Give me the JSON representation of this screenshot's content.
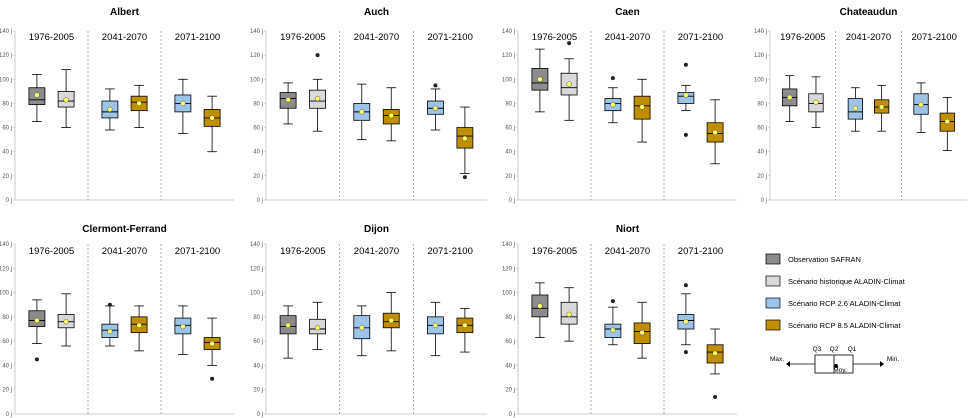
{
  "chart_data": {
    "type": "boxplot",
    "y_unit_suffix": " j",
    "ylim": [
      0,
      140
    ],
    "yticks": [
      0,
      20,
      40,
      60,
      80,
      100,
      120,
      140
    ],
    "periods": [
      "1976-2005",
      "2041-2070",
      "2071-2100"
    ],
    "series_colors": {
      "obs": "#8c8c8c",
      "hist": "#d9d9d9",
      "rcp26": "#9dc3e6",
      "rcp85": "#bf8f00"
    },
    "panels": [
      {
        "title": "Albert",
        "boxes": [
          {
            "series": "obs",
            "min": 65,
            "q1": 79,
            "median": 83,
            "q3": 93,
            "max": 104,
            "mean": 87
          },
          {
            "series": "hist",
            "min": 60,
            "q1": 77,
            "median": 82,
            "q3": 90,
            "max": 108,
            "mean": 83
          },
          {
            "series": "rcp26",
            "min": 58,
            "q1": 68,
            "median": 73,
            "q3": 82,
            "max": 92,
            "mean": 75
          },
          {
            "series": "rcp85",
            "min": 60,
            "q1": 74,
            "median": 81,
            "q3": 86,
            "max": 95,
            "mean": 80
          },
          {
            "series": "rcp26",
            "min": 55,
            "q1": 73,
            "median": 80,
            "q3": 87,
            "max": 100,
            "mean": 80
          },
          {
            "series": "rcp85",
            "min": 40,
            "q1": 61,
            "median": 68,
            "q3": 75,
            "max": 86,
            "mean": 68
          }
        ]
      },
      {
        "title": "Auch",
        "boxes": [
          {
            "series": "obs",
            "min": 63,
            "q1": 76,
            "median": 84,
            "q3": 89,
            "max": 97,
            "mean": 83
          },
          {
            "series": "hist",
            "min": 57,
            "q1": 76,
            "median": 82,
            "q3": 91,
            "max": 100,
            "mean": 84,
            "outliers": [
              120
            ]
          },
          {
            "series": "rcp26",
            "min": 50,
            "q1": 66,
            "median": 73,
            "q3": 80,
            "max": 96,
            "mean": 73
          },
          {
            "series": "rcp85",
            "min": 49,
            "q1": 63,
            "median": 70,
            "q3": 75,
            "max": 93,
            "mean": 70
          },
          {
            "series": "rcp26",
            "min": 58,
            "q1": 71,
            "median": 76,
            "q3": 82,
            "max": 92,
            "mean": 76,
            "outliers": [
              95
            ]
          },
          {
            "series": "rcp85",
            "min": 22,
            "q1": 43,
            "median": 53,
            "q3": 60,
            "max": 77,
            "mean": 51,
            "outliers": [
              19
            ]
          }
        ]
      },
      {
        "title": "Caen",
        "boxes": [
          {
            "series": "obs",
            "min": 73,
            "q1": 91,
            "median": 97,
            "q3": 109,
            "max": 125,
            "mean": 100
          },
          {
            "series": "hist",
            "min": 66,
            "q1": 87,
            "median": 93,
            "q3": 105,
            "max": 117,
            "mean": 96,
            "outliers": [
              130
            ]
          },
          {
            "series": "rcp26",
            "min": 64,
            "q1": 74,
            "median": 80,
            "q3": 84,
            "max": 93,
            "mean": 79,
            "outliers": [
              101
            ]
          },
          {
            "series": "rcp85",
            "min": 48,
            "q1": 67,
            "median": 78,
            "q3": 86,
            "max": 100,
            "mean": 77
          },
          {
            "series": "rcp26",
            "min": 74,
            "q1": 80,
            "median": 86,
            "q3": 89,
            "max": 95,
            "mean": 87,
            "outliers": [
              112,
              54
            ]
          },
          {
            "series": "rcp85",
            "min": 30,
            "q1": 48,
            "median": 55,
            "q3": 64,
            "max": 83,
            "mean": 56
          }
        ]
      },
      {
        "title": "Chateaudun",
        "boxes": [
          {
            "series": "obs",
            "min": 65,
            "q1": 78,
            "median": 85,
            "q3": 92,
            "max": 103,
            "mean": 85
          },
          {
            "series": "hist",
            "min": 60,
            "q1": 73,
            "median": 80,
            "q3": 88,
            "max": 102,
            "mean": 81
          },
          {
            "series": "rcp26",
            "min": 57,
            "q1": 67,
            "median": 73,
            "q3": 84,
            "max": 93,
            "mean": 76
          },
          {
            "series": "rcp85",
            "min": 57,
            "q1": 72,
            "median": 77,
            "q3": 83,
            "max": 95,
            "mean": 77
          },
          {
            "series": "rcp26",
            "min": 56,
            "q1": 71,
            "median": 79,
            "q3": 88,
            "max": 97,
            "mean": 79
          },
          {
            "series": "rcp85",
            "min": 41,
            "q1": 57,
            "median": 65,
            "q3": 72,
            "max": 85,
            "mean": 65
          }
        ]
      },
      {
        "title": "Clermont-Ferrand",
        "boxes": [
          {
            "series": "obs",
            "min": 58,
            "q1": 72,
            "median": 77,
            "q3": 85,
            "max": 94,
            "mean": 77,
            "outliers": [
              45
            ]
          },
          {
            "series": "hist",
            "min": 56,
            "q1": 71,
            "median": 76,
            "q3": 82,
            "max": 99,
            "mean": 76
          },
          {
            "series": "rcp26",
            "min": 56,
            "q1": 63,
            "median": 69,
            "q3": 74,
            "max": 89,
            "mean": 68,
            "outliers": [
              90
            ]
          },
          {
            "series": "rcp85",
            "min": 52,
            "q1": 67,
            "median": 74,
            "q3": 80,
            "max": 89,
            "mean": 73
          },
          {
            "series": "rcp26",
            "min": 49,
            "q1": 66,
            "median": 73,
            "q3": 79,
            "max": 89,
            "mean": 72
          },
          {
            "series": "rcp85",
            "min": 40,
            "q1": 53,
            "median": 59,
            "q3": 63,
            "max": 79,
            "mean": 58,
            "outliers": [
              29
            ]
          }
        ]
      },
      {
        "title": "Dijon",
        "boxes": [
          {
            "series": "obs",
            "min": 46,
            "q1": 66,
            "median": 72,
            "q3": 81,
            "max": 89,
            "mean": 73
          },
          {
            "series": "hist",
            "min": 53,
            "q1": 66,
            "median": 70,
            "q3": 78,
            "max": 92,
            "mean": 71
          },
          {
            "series": "rcp26",
            "min": 48,
            "q1": 62,
            "median": 71,
            "q3": 81,
            "max": 89,
            "mean": 71
          },
          {
            "series": "rcp85",
            "min": 52,
            "q1": 71,
            "median": 76,
            "q3": 83,
            "max": 100,
            "mean": 77
          },
          {
            "series": "rcp26",
            "min": 48,
            "q1": 66,
            "median": 73,
            "q3": 80,
            "max": 92,
            "mean": 73
          },
          {
            "series": "rcp85",
            "min": 51,
            "q1": 67,
            "median": 73,
            "q3": 79,
            "max": 87,
            "mean": 73
          }
        ]
      },
      {
        "title": "Niort",
        "boxes": [
          {
            "series": "obs",
            "min": 63,
            "q1": 80,
            "median": 87,
            "q3": 98,
            "max": 108,
            "mean": 89
          },
          {
            "series": "hist",
            "min": 60,
            "q1": 74,
            "median": 80,
            "q3": 92,
            "max": 104,
            "mean": 82
          },
          {
            "series": "rcp26",
            "min": 57,
            "q1": 63,
            "median": 70,
            "q3": 74,
            "max": 88,
            "mean": 69,
            "outliers": [
              93
            ]
          },
          {
            "series": "rcp85",
            "min": 46,
            "q1": 58,
            "median": 68,
            "q3": 75,
            "max": 92,
            "mean": 67
          },
          {
            "series": "rcp26",
            "min": 57,
            "q1": 70,
            "median": 77,
            "q3": 82,
            "max": 99,
            "mean": 76,
            "outliers": [
              106,
              51
            ]
          },
          {
            "series": "rcp85",
            "min": 33,
            "q1": 42,
            "median": 51,
            "q3": 57,
            "max": 70,
            "mean": 50,
            "outliers": [
              14
            ]
          }
        ]
      }
    ],
    "legend": [
      {
        "series": "obs",
        "label": "Observation SAFRAN"
      },
      {
        "series": "hist",
        "label": "Scénario historique ALADIN-Climat"
      },
      {
        "series": "rcp26",
        "label": "Scénario RCP 2.6 ALADIN-Climat"
      },
      {
        "series": "rcp85",
        "label": "Scénario RCP 8.5 ALADIN-Climat"
      }
    ],
    "boxplot_key": {
      "max": "Max.",
      "q3": "Q3",
      "q2": "Q2",
      "q1": "Q1",
      "min": "Min.",
      "mean": "Moy."
    }
  }
}
